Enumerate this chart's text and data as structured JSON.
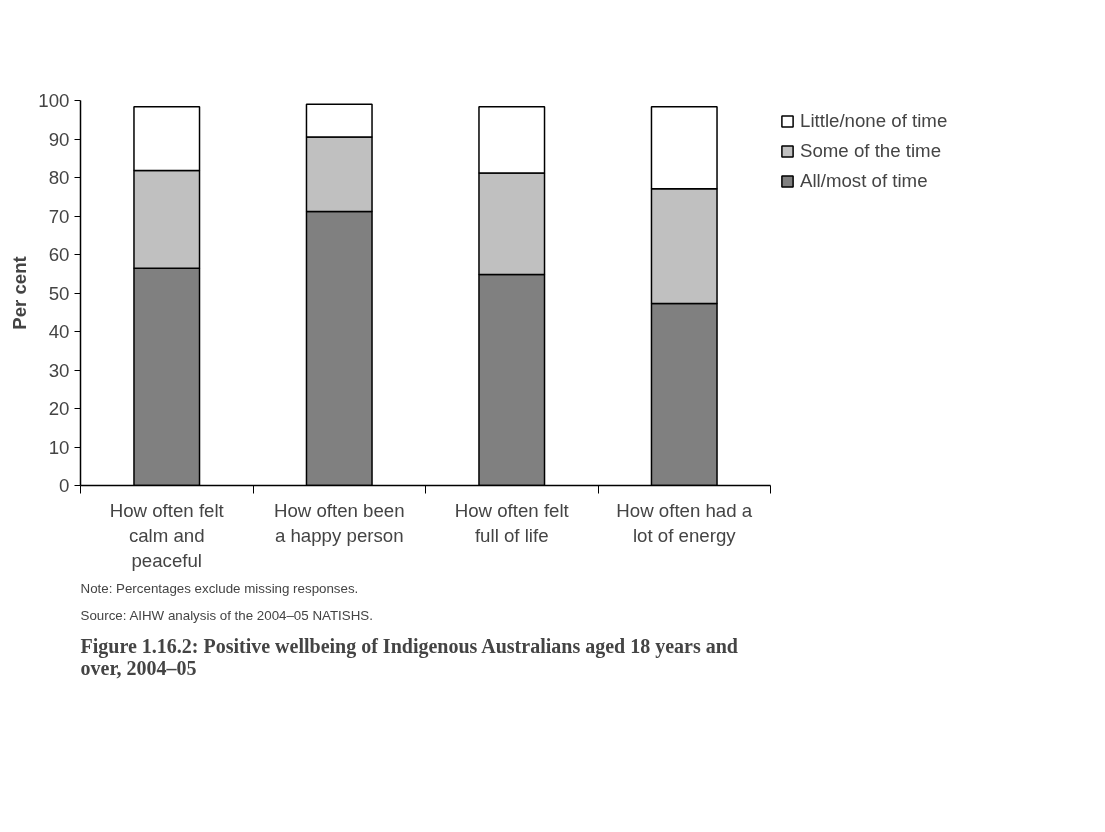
{
  "chart_data": {
    "type": "bar",
    "stacked": true,
    "title": "Figure 1.16.2: Positive wellbeing of Indigenous Australians aged 18 years and over, 2004–05",
    "ylabel": "Per cent",
    "categories": [
      "How often felt calm and peaceful",
      "How often been a happy person",
      "How often felt full of life",
      "How often had a lot of energy"
    ],
    "series": [
      {
        "name": "All/most of time",
        "color": "#808080",
        "values": [
          56.4,
          71.2,
          54.8,
          47.3
        ]
      },
      {
        "name": "Some of the time",
        "color": "#c0c0c0",
        "values": [
          25.4,
          19.3,
          26.4,
          29.8
        ]
      },
      {
        "name": "Little/none of time",
        "color": "#ffffff",
        "values": [
          16.6,
          8.5,
          17.2,
          21.3
        ]
      }
    ],
    "ylim": [
      0,
      100
    ],
    "yticks": [
      0,
      10,
      20,
      30,
      40,
      50,
      60,
      70,
      80,
      90,
      100
    ],
    "grid": false,
    "legend": "top right",
    "annotations": [
      "Note: Percentages exclude missing responses.",
      "Source: AIHW analysis of the 2004–05 NATISHS."
    ]
  }
}
